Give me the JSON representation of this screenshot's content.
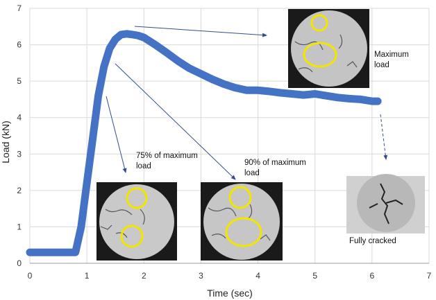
{
  "chart_data": {
    "type": "line",
    "xlabel": "Time (sec)",
    "ylabel": "Load (kN)",
    "xlim": [
      0,
      7
    ],
    "ylim": [
      0,
      7
    ],
    "x_ticks": [
      "0",
      "1",
      "2",
      "3",
      "4",
      "5",
      "6",
      "7"
    ],
    "y_ticks": [
      "0",
      "1",
      "2",
      "3",
      "4",
      "5",
      "6",
      "7"
    ],
    "grid": true,
    "line_color": "#4472c4",
    "series": [
      {
        "x": [
          0,
          0.2,
          0.4,
          0.6,
          0.8,
          0.9,
          1.0,
          1.1,
          1.2,
          1.3,
          1.4,
          1.5,
          1.6,
          1.7,
          1.8,
          1.9,
          2.0,
          2.2,
          2.4,
          2.6,
          2.8,
          3.0,
          3.2,
          3.4,
          3.6,
          3.8,
          4.0,
          4.2,
          4.4,
          4.6,
          4.8,
          5.0,
          5.2,
          5.4,
          5.6,
          5.8,
          6.0,
          6.1
        ],
        "y": [
          0.3,
          0.3,
          0.3,
          0.3,
          0.3,
          1.0,
          2.2,
          3.4,
          4.6,
          5.4,
          5.9,
          6.15,
          6.28,
          6.3,
          6.28,
          6.25,
          6.2,
          6.0,
          5.78,
          5.55,
          5.35,
          5.2,
          5.05,
          4.92,
          4.82,
          4.75,
          4.75,
          4.72,
          4.68,
          4.65,
          4.62,
          4.65,
          4.6,
          4.55,
          4.52,
          4.5,
          4.45,
          4.45
        ]
      }
    ],
    "annotations": [
      {
        "text_lines": [
          "75% of maximum",
          "load"
        ],
        "at_x": 1.35,
        "at_y": 4.6
      },
      {
        "text_lines": [
          "90% of maximum",
          "load"
        ],
        "at_x": 1.5,
        "at_y": 5.5
      },
      {
        "text_lines": [
          "Maximum",
          "load"
        ],
        "at_x": 1.8,
        "at_y": 6.3
      },
      {
        "text_lines": [
          "Fully cracked"
        ],
        "at_x": 6.1,
        "at_y": 4.45
      }
    ]
  }
}
